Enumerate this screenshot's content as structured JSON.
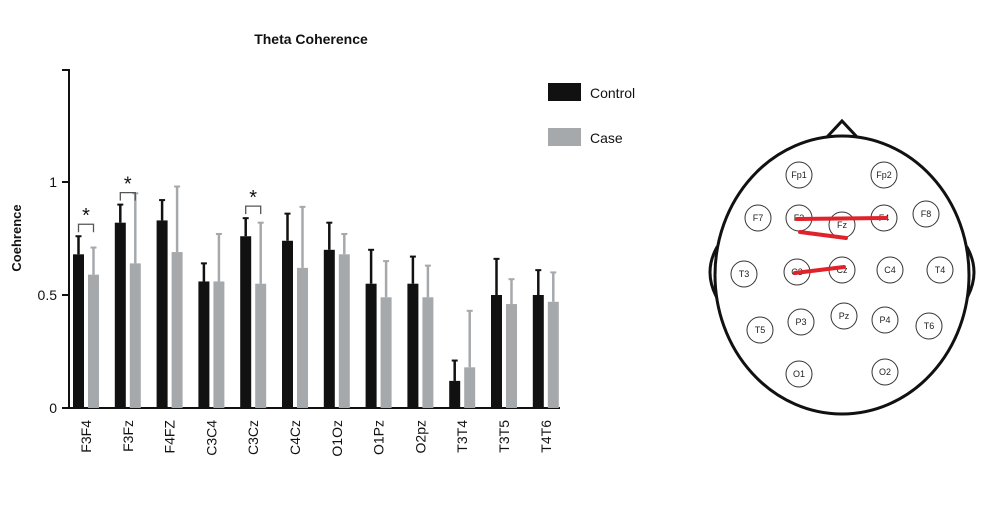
{
  "chart_data": {
    "type": "bar",
    "title": "Theta Coherence",
    "ylabel": "Coehrence",
    "xlabel": "",
    "ylim": [
      0,
      1.5
    ],
    "yticks": [
      {
        "value": 0,
        "label": "0"
      },
      {
        "value": 0.5,
        "label": "0.5"
      },
      {
        "value": 1,
        "label": "1"
      }
    ],
    "categories": [
      "F3F4",
      "F3Fz",
      "F4FZ",
      "C3C4",
      "C3Cz",
      "C4Cz",
      "O1Oz",
      "O1Pz",
      "O2pz",
      "T3T4",
      "T3T5",
      "T4T6"
    ],
    "series": [
      {
        "name": "Control",
        "color": "#111111",
        "values": [
          0.68,
          0.82,
          0.83,
          0.56,
          0.76,
          0.74,
          0.7,
          0.55,
          0.55,
          0.12,
          0.5,
          0.5
        ],
        "errors": [
          0.08,
          0.08,
          0.09,
          0.08,
          0.08,
          0.12,
          0.12,
          0.15,
          0.12,
          0.09,
          0.16,
          0.11
        ]
      },
      {
        "name": "Case",
        "color": "#a6a9ac",
        "values": [
          0.59,
          0.64,
          0.69,
          0.56,
          0.55,
          0.62,
          0.68,
          0.49,
          0.49,
          0.18,
          0.46,
          0.47
        ],
        "errors": [
          0.12,
          0.31,
          0.29,
          0.21,
          0.27,
          0.27,
          0.09,
          0.16,
          0.14,
          0.25,
          0.11,
          0.13
        ]
      }
    ],
    "significance": [
      {
        "category": "F3F4",
        "label": "*"
      },
      {
        "category": "F3Fz",
        "label": "*"
      },
      {
        "category": "C3Cz",
        "label": "*"
      }
    ],
    "legend_position": "top-right"
  },
  "head_map": {
    "electrodes": [
      "Fp1",
      "Fp2",
      "F7",
      "F3",
      "Fz",
      "F4",
      "F8",
      "T3",
      "C3",
      "Cz",
      "C4",
      "T4",
      "T5",
      "P3",
      "Pz",
      "P4",
      "T6",
      "O1",
      "O2"
    ],
    "connections": [
      [
        "F3",
        "F4"
      ],
      [
        "F3",
        "Fz"
      ],
      [
        "C3",
        "Cz"
      ]
    ],
    "connection_color": "#e0222b"
  }
}
